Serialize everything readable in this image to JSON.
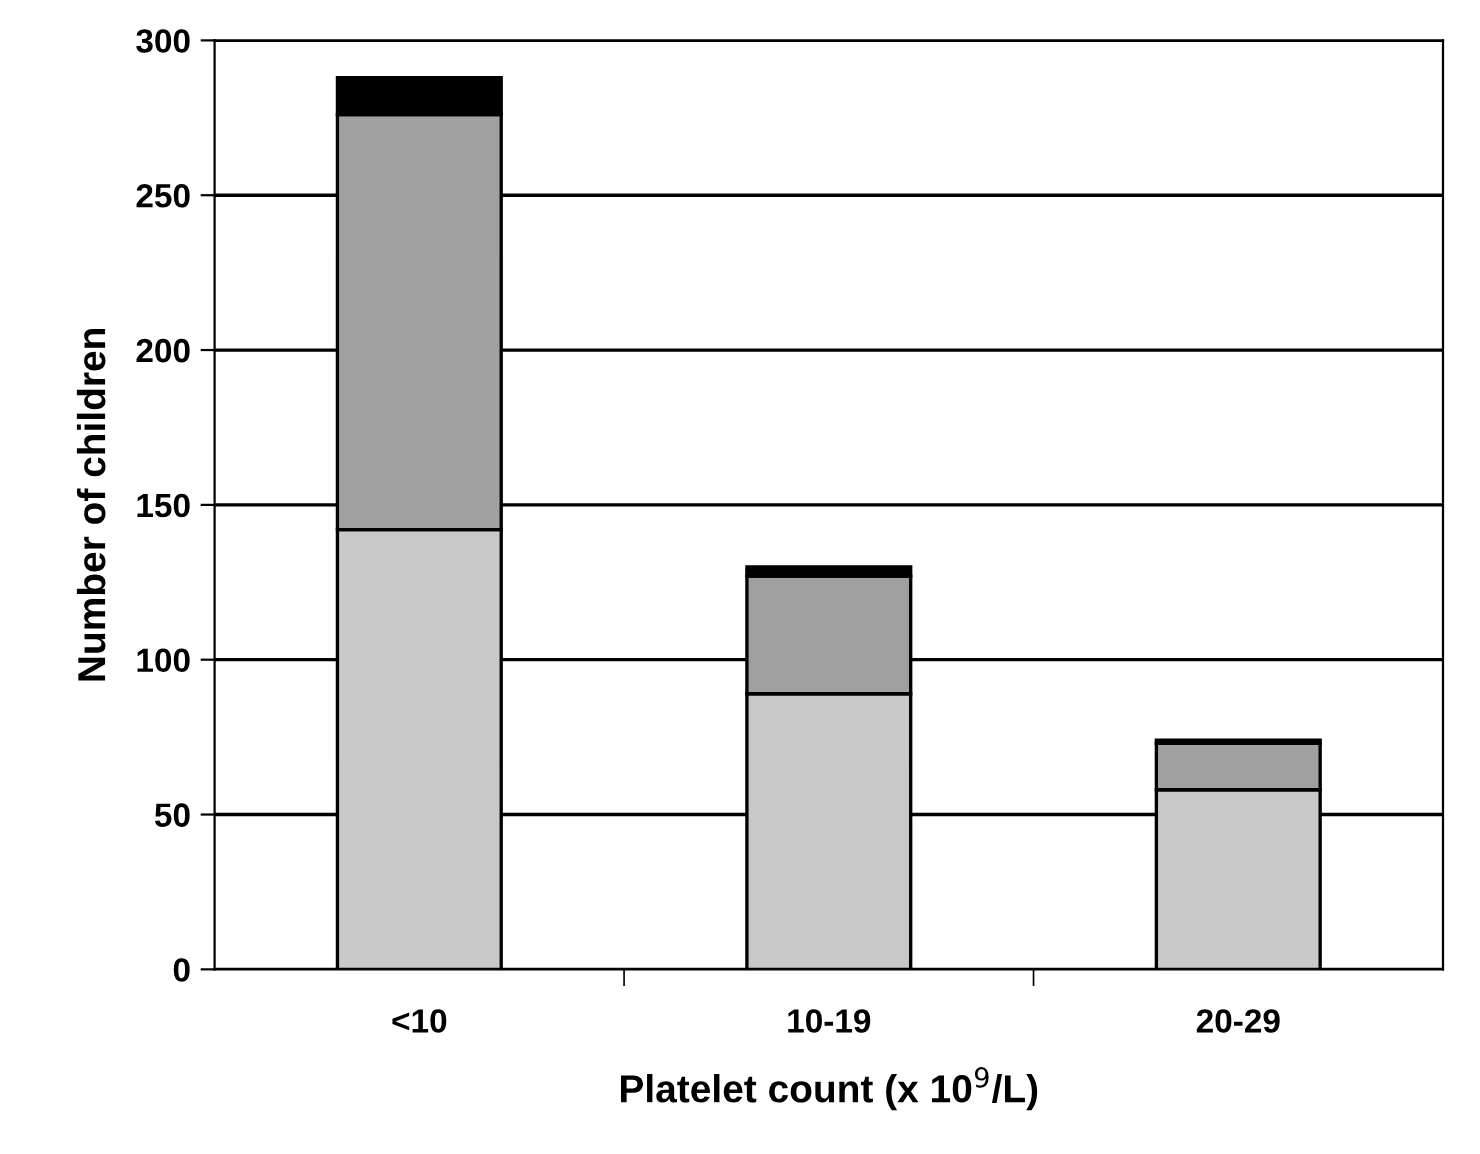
{
  "chart_data": {
    "type": "bar",
    "stacked": true,
    "xlabel": "Platelet count (x 10$^{9}$/L)",
    "ylabel": "Number of children",
    "categories": [
      "<10",
      "10-19",
      "20-29"
    ],
    "series": [
      {
        "color": "#c8c8c8",
        "values": [
          142,
          89,
          58
        ]
      },
      {
        "color": "#a0a0a0",
        "values": [
          134,
          38,
          15
        ]
      },
      {
        "color": "#000000",
        "values": [
          12,
          3,
          1
        ]
      }
    ],
    "ylim": [
      0,
      300
    ],
    "yticks": [
      0,
      50,
      100,
      150,
      200,
      250,
      300
    ],
    "grid": "y",
    "legend": false
  }
}
